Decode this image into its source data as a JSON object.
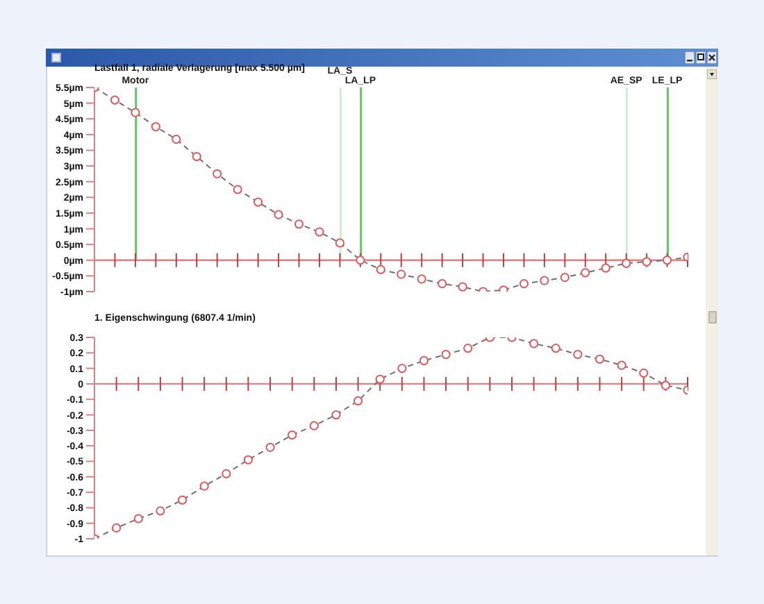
{
  "chart_data": [
    {
      "type": "line",
      "title": "Lastfall 1, radiale Verlagerung [max 5.500 µm]",
      "categories": [
        null,
        null,
        null,
        null,
        null,
        null,
        null,
        null,
        null,
        null,
        null,
        null,
        null,
        null,
        null,
        null,
        null,
        null,
        null,
        null,
        null,
        null,
        null,
        null,
        null,
        null,
        null,
        null,
        null,
        null
      ],
      "ylim": [
        -1,
        5.5
      ],
      "yticks": [
        {
          "value": 5.5,
          "label": "5.5µm"
        },
        {
          "value": 5,
          "label": "5µm"
        },
        {
          "value": 4.5,
          "label": "4.5µm"
        },
        {
          "value": 4,
          "label": "4µm"
        },
        {
          "value": 3.5,
          "label": "3.5µm"
        },
        {
          "value": 3,
          "label": "3µm"
        },
        {
          "value": 2.5,
          "label": "2.5µm"
        },
        {
          "value": 2,
          "label": "2µm"
        },
        {
          "value": 1.5,
          "label": "1.5µm"
        },
        {
          "value": 1,
          "label": "1µm"
        },
        {
          "value": 0.5,
          "label": "0.5µm"
        },
        {
          "value": 0,
          "label": "0µm"
        },
        {
          "value": -0.5,
          "label": "-0.5µm"
        },
        {
          "value": -1,
          "label": "-1µm"
        }
      ],
      "tick_labels": "y",
      "marker": "circle",
      "line_style": "dashed",
      "ref_lines": [
        {
          "axis": "y",
          "value": 0,
          "label": null,
          "color": "#e08080"
        }
      ],
      "series": [
        {
          "type": "bar",
          "colors": [
            null,
            null,
            "#6cc46c",
            null,
            null,
            null,
            null,
            null,
            null,
            null,
            null,
            null,
            "#d6ecd6",
            "#6cc46c",
            null,
            null,
            null,
            null,
            null,
            null,
            null,
            null,
            null,
            null,
            null,
            null,
            "#d6ecd6",
            null,
            "#6cc46c",
            null
          ],
          "values": [
            null,
            null,
            5.5,
            null,
            null,
            null,
            null,
            null,
            null,
            null,
            null,
            null,
            5.5,
            5.5,
            null,
            null,
            null,
            null,
            null,
            null,
            null,
            null,
            null,
            null,
            null,
            null,
            5.5,
            null,
            5.5,
            null
          ],
          "value_labels": [
            null,
            null,
            "Motor",
            null,
            null,
            null,
            null,
            null,
            null,
            null,
            null,
            null,
            "LA_S",
            "LA_LP",
            null,
            null,
            null,
            null,
            null,
            null,
            null,
            null,
            null,
            null,
            null,
            null,
            "AE_SP",
            null,
            "LE_LP",
            null
          ]
        },
        {
          "type": "line",
          "color": "#707070",
          "marker": "none",
          "values": [
            5.5,
            5.1,
            4.7,
            4.25,
            3.85,
            3.3,
            2.75,
            2.25,
            1.85,
            1.45,
            1.15,
            0.9,
            0.55,
            0,
            -0.3,
            -0.45,
            -0.6,
            -0.75,
            -0.85,
            -1,
            -0.95,
            -0.75,
            -0.65,
            -0.55,
            -0.4,
            -0.25,
            -0.1,
            -0.05,
            0,
            0.1
          ]
        },
        {
          "type": "scatter",
          "color": "#e05a5a",
          "values": [
            5.5,
            5.1,
            4.7,
            4.25,
            3.85,
            3.3,
            2.75,
            2.25,
            1.85,
            1.45,
            1.15,
            0.9,
            0.55,
            0,
            -0.3,
            -0.45,
            -0.6,
            -0.75,
            -0.85,
            -1,
            -0.95,
            -0.75,
            -0.65,
            -0.55,
            -0.4,
            -0.25,
            -0.1,
            -0.05,
            0,
            0.1
          ]
        }
      ]
    },
    {
      "type": "line",
      "title": "1. Eigenschwingung (6807.4 1/min)",
      "categories": [
        null,
        null,
        null,
        null,
        null,
        null,
        null,
        null,
        null,
        null,
        null,
        null,
        null,
        null,
        null,
        null,
        null,
        null,
        null,
        null,
        null,
        null,
        null,
        null,
        null,
        null,
        null,
        null
      ],
      "ylim": [
        -1,
        0.3
      ],
      "yticks": [
        0.3,
        0.2,
        0.1,
        0,
        -0.1,
        -0.2,
        -0.3,
        -0.4,
        -0.5,
        -0.6,
        -0.7,
        -0.8,
        -0.9,
        -1
      ],
      "tick_labels": "y",
      "marker": "circle",
      "line_style": "dashed",
      "ref_lines": [
        {
          "axis": "y",
          "value": 0,
          "label": null,
          "color": "#e08080"
        }
      ],
      "series": [
        {
          "type": "line",
          "color": "#707070",
          "marker": "none",
          "values": [
            -1,
            -0.93,
            -0.87,
            -0.82,
            -0.75,
            -0.66,
            -0.58,
            -0.49,
            -0.41,
            -0.33,
            -0.27,
            -0.2,
            -0.11,
            0.03,
            0.1,
            0.15,
            0.19,
            0.23,
            0.3,
            0.3,
            0.26,
            0.23,
            0.19,
            0.16,
            0.12,
            0.07,
            -0.01,
            -0.04
          ]
        },
        {
          "type": "scatter",
          "color": "#e05a5a",
          "values": [
            -1,
            -0.93,
            -0.87,
            -0.82,
            -0.75,
            -0.66,
            -0.58,
            -0.49,
            -0.41,
            -0.33,
            -0.27,
            -0.2,
            -0.11,
            0.03,
            0.1,
            0.15,
            0.19,
            0.23,
            0.3,
            0.3,
            0.26,
            0.23,
            0.19,
            0.16,
            0.12,
            0.07,
            -0.01,
            -0.04
          ]
        }
      ]
    }
  ]
}
